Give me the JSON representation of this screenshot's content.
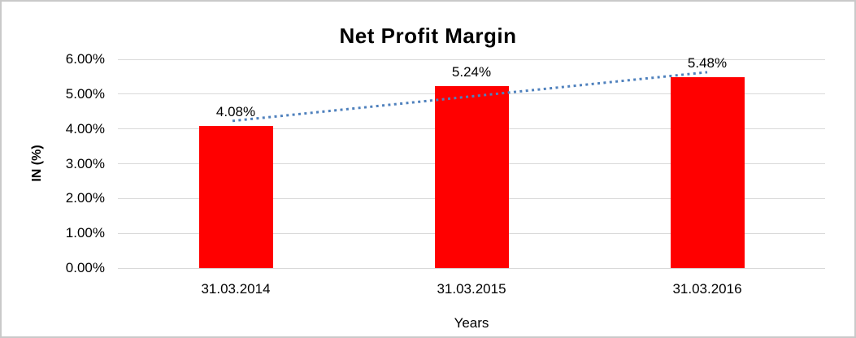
{
  "chart_data": {
    "type": "bar",
    "title": "Net Profit Margin",
    "xlabel": "Years",
    "ylabel": "IN (%)",
    "categories": [
      "31.03.2014",
      "31.03.2015",
      "31.03.2016"
    ],
    "series": [
      {
        "name": "Net Profit Margin",
        "values": [
          4.08,
          5.24,
          5.48
        ]
      }
    ],
    "data_labels": [
      "4.08%",
      "5.24%",
      "5.48%"
    ],
    "y_ticks": [
      "6.00%",
      "5.00%",
      "4.00%",
      "3.00%",
      "2.00%",
      "1.00%",
      "0.00%"
    ],
    "ylim": [
      0,
      6
    ],
    "grid": true,
    "legend": "none",
    "bar_color": "#ff0000",
    "gridline_color": "#d9d9d9",
    "trendline": {
      "type": "linear",
      "style": "dotted",
      "color": "#4f81bd",
      "start_value": 4.23,
      "end_value": 5.63
    }
  }
}
